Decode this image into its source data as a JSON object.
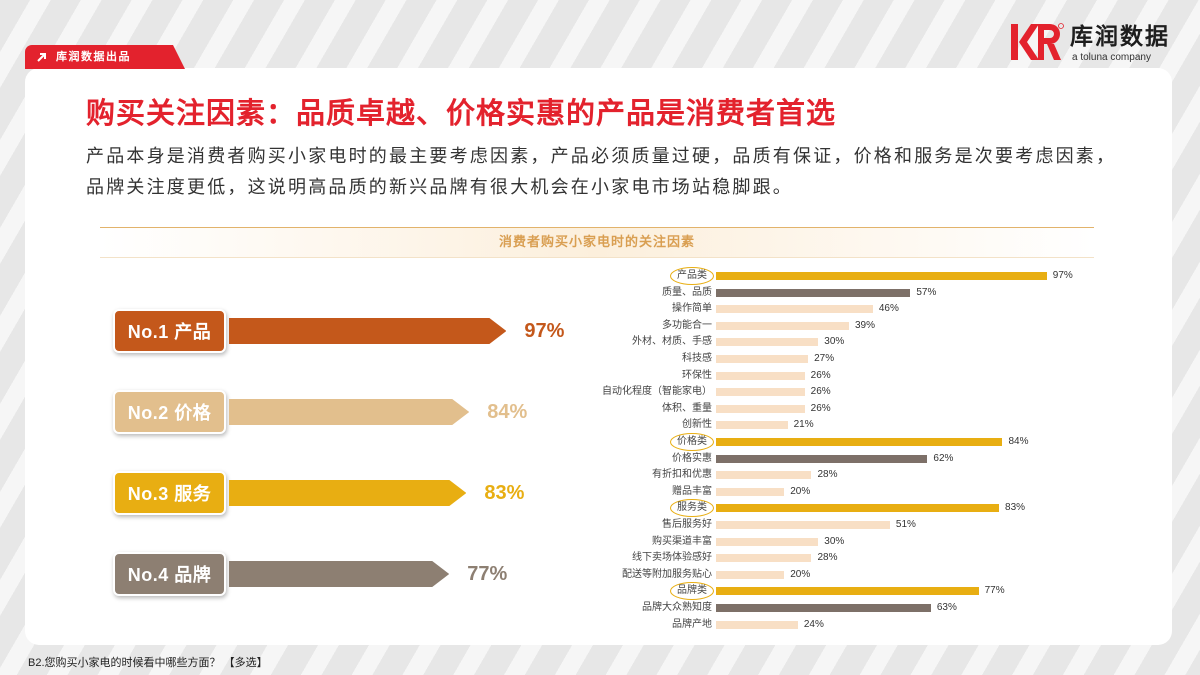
{
  "brand": {
    "tag_icon": "arrow-up-right-icon",
    "tag_label": "库润数据出品",
    "logo_mark": "KR",
    "logo_name": "库润数据",
    "logo_tagline": "a toluna company",
    "accent": "#e3222d"
  },
  "title": "购买关注因素：品质卓越、价格实惠的产品是消费者首选",
  "intro": [
    "产品本身是消费者购买小家电时的最主要考虑因素，产品必须质量过硬，品质有保证，价格和服务是次要考虑因素，",
    "品牌关注度更低，这说明高品质的新兴品牌有很大机会在小家电市场站稳脚跟。"
  ],
  "footnote": "B2.您购买小家电的时候看中哪些方面？ 【多选】",
  "chart_data": [
    {
      "type": "bar",
      "orientation": "horizontal",
      "categories": [
        "No.1 产品",
        "No.2 价格",
        "No.3 服务",
        "No.4 品牌"
      ],
      "values": [
        97,
        84,
        83,
        77
      ],
      "unit": "%",
      "colors": [
        "#c4581b",
        "#e2bf8d",
        "#e8ae12",
        "#8d7f72"
      ]
    },
    {
      "type": "bar",
      "orientation": "horizontal",
      "title": "消费者购买小家电时的关注因素",
      "categories": [
        "产品类",
        "质量、品质",
        "操作简单",
        "多功能合一",
        "外材、材质、手感",
        "科技感",
        "环保性",
        "自动化程度（智能家电）",
        "体积、重量",
        "创新性",
        "价格类",
        "价格实惠",
        "有折扣和优惠",
        "赠品丰富",
        "服务类",
        "售后服务好",
        "购买渠道丰富",
        "线下卖场体验感好",
        "配送等附加服务贴心",
        "品牌类",
        "品牌大众熟知度",
        "品牌产地"
      ],
      "values": [
        97,
        57,
        46,
        39,
        30,
        27,
        26,
        26,
        26,
        21,
        84,
        62,
        28,
        20,
        83,
        51,
        30,
        28,
        20,
        77,
        63,
        24
      ],
      "unit": "%",
      "palette": [
        "#e8ae12",
        "#7d7068",
        "#f8dfc5"
      ],
      "color_index": [
        0,
        1,
        2,
        2,
        2,
        2,
        2,
        2,
        2,
        2,
        0,
        1,
        2,
        2,
        0,
        2,
        2,
        2,
        2,
        0,
        1,
        2
      ],
      "circled": [
        0,
        10,
        14,
        19
      ]
    }
  ]
}
